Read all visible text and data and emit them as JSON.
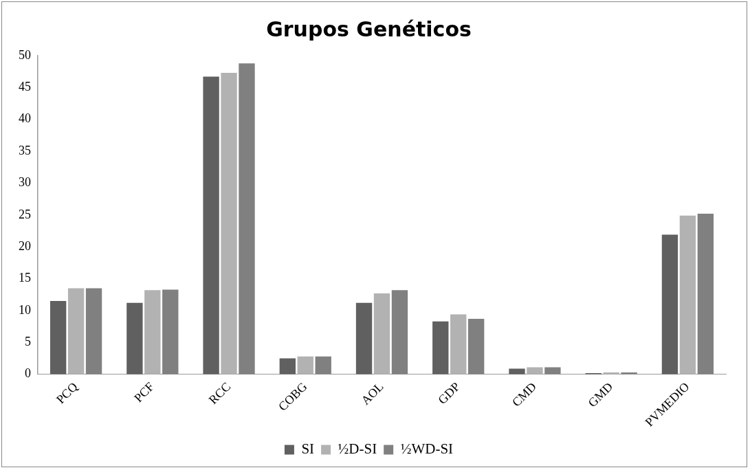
{
  "chart_data": {
    "type": "bar",
    "title": "Grupos Genéticos",
    "categories": [
      "PCQ",
      "PCF",
      "RCC",
      "COBG",
      "AOL",
      "GDP",
      "CMD",
      "GMD",
      "PVMEDIO"
    ],
    "series": [
      {
        "name": "SI",
        "color": "#606060",
        "values": [
          11.5,
          11.2,
          46.7,
          2.5,
          11.2,
          8.3,
          0.9,
          0.2,
          21.9
        ]
      },
      {
        "name": "½D-SI",
        "color": "#b2b2b2",
        "values": [
          13.5,
          13.2,
          47.3,
          2.8,
          12.7,
          9.4,
          1.1,
          0.3,
          24.9
        ]
      },
      {
        "name": "½WD-SI",
        "color": "#808080",
        "values": [
          13.5,
          13.3,
          48.8,
          2.8,
          13.2,
          8.7,
          1.1,
          0.3,
          25.2
        ]
      }
    ],
    "ylim": [
      0,
      50
    ],
    "yticks": [
      0,
      5,
      10,
      15,
      20,
      25,
      30,
      35,
      40,
      45,
      50
    ],
    "grid": false,
    "legend": "bottom"
  }
}
